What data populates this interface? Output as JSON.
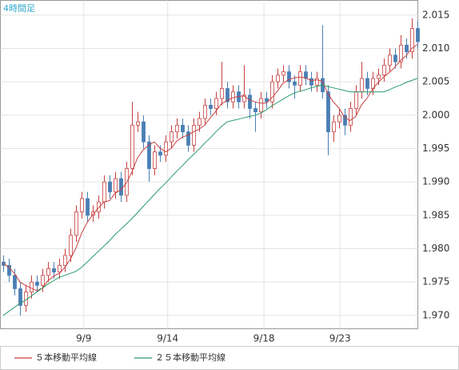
{
  "chart_data": {
    "type": "candlestick",
    "title": "4時間足",
    "x": [
      0,
      1,
      2,
      3,
      4,
      5,
      6,
      7,
      8,
      9,
      10,
      11,
      12,
      13,
      14,
      15,
      16,
      17,
      18,
      19,
      20,
      21,
      22,
      23,
      24,
      25,
      26,
      27,
      28,
      29,
      30,
      31,
      32,
      33,
      34,
      35,
      36,
      37,
      38,
      39,
      40,
      41,
      42,
      43,
      44,
      45,
      46,
      47,
      48,
      49,
      50,
      51,
      52,
      53,
      54,
      55,
      56,
      57,
      58,
      59,
      60,
      61,
      62,
      63,
      64,
      65,
      66,
      67,
      68,
      69,
      70,
      71,
      72,
      73,
      74
    ],
    "candles": {
      "up_color": "#c84040",
      "down_color": "#4a7fb5",
      "open": [
        1.978,
        1.9775,
        1.976,
        1.974,
        1.9715,
        1.9735,
        1.975,
        1.9745,
        1.976,
        1.977,
        1.9765,
        1.9775,
        1.979,
        1.982,
        1.9855,
        1.9875,
        1.985,
        1.9855,
        1.987,
        1.99,
        1.9885,
        1.9905,
        1.988,
        1.992,
        1.9985,
        1.999,
        1.996,
        1.992,
        1.9945,
        1.994,
        1.996,
        1.9975,
        1.9985,
        1.9975,
        1.9955,
        1.9985,
        1.9995,
        2.0015,
        2.001,
        2.0025,
        2.004,
        2.002,
        2.0035,
        2.002,
        2.003,
        2.001,
        2.0005,
        2.0025,
        2.002,
        2.005,
        2.006,
        2.0065,
        2.005,
        2.0045,
        2.0065,
        2.0055,
        2.0045,
        2.0055,
        2.0035,
        1.9975,
        1.999,
        2.0,
        1.9985,
        2.001,
        2.0035,
        2.0055,
        2.004,
        2.0055,
        2.006,
        2.0075,
        2.009,
        2.008,
        2.0105,
        2.0095,
        2.013
      ],
      "high": [
        1.979,
        1.9785,
        1.977,
        1.975,
        1.9745,
        1.976,
        1.976,
        1.977,
        1.978,
        1.978,
        1.9785,
        1.98,
        1.983,
        1.9865,
        1.9885,
        1.9885,
        1.9865,
        1.988,
        1.991,
        1.991,
        1.9915,
        1.9915,
        1.993,
        2.002,
        2.0005,
        2.0,
        1.997,
        1.9955,
        1.9955,
        1.997,
        1.9985,
        1.9995,
        1.9995,
        1.9985,
        1.9995,
        2.0005,
        2.0025,
        2.0025,
        2.0035,
        2.008,
        2.005,
        2.0045,
        2.0045,
        2.0075,
        2.004,
        2.002,
        2.0035,
        2.0035,
        2.006,
        2.007,
        2.0075,
        2.0075,
        2.006,
        2.0075,
        2.0075,
        2.0065,
        2.0065,
        2.0135,
        2.0045,
        2.0,
        2.001,
        2.001,
        2.002,
        2.0045,
        2.008,
        2.0065,
        2.0065,
        2.007,
        2.0085,
        2.01,
        2.01,
        2.012,
        2.0115,
        2.0145,
        2.014
      ],
      "low": [
        1.9765,
        1.975,
        1.973,
        1.97,
        1.9705,
        1.9725,
        1.9735,
        1.9735,
        1.975,
        1.9755,
        1.9755,
        1.9765,
        1.978,
        1.981,
        1.9845,
        1.984,
        1.984,
        1.9845,
        1.986,
        1.9875,
        1.9875,
        1.987,
        1.987,
        1.991,
        1.9975,
        1.995,
        1.99,
        1.991,
        1.993,
        1.993,
        1.995,
        1.9965,
        1.9965,
        1.9945,
        1.9945,
        1.9975,
        1.9985,
        2.0,
        2.0,
        2.0015,
        2.001,
        2.001,
        2.001,
        2.001,
        1.9995,
        1.9975,
        1.9995,
        2.001,
        2.001,
        2.004,
        2.005,
        2.004,
        2.0025,
        2.0035,
        2.0045,
        2.0035,
        2.0035,
        2.0025,
        1.994,
        1.996,
        1.998,
        1.997,
        1.9975,
        2.0,
        2.0025,
        2.003,
        2.003,
        2.0045,
        2.005,
        2.0065,
        2.007,
        2.007,
        2.0085,
        2.0085,
        2.01
      ],
      "close": [
        1.9775,
        1.976,
        1.974,
        1.9715,
        1.9735,
        1.975,
        1.9745,
        1.976,
        1.977,
        1.9765,
        1.9775,
        1.979,
        1.982,
        1.9855,
        1.9875,
        1.985,
        1.9855,
        1.987,
        1.99,
        1.9885,
        1.9905,
        1.988,
        1.992,
        1.9985,
        1.999,
        1.996,
        1.992,
        1.9945,
        1.994,
        1.996,
        1.9975,
        1.9985,
        1.9975,
        1.9955,
        1.9985,
        1.9995,
        2.0015,
        2.001,
        2.0025,
        2.004,
        2.002,
        2.0035,
        2.002,
        2.003,
        2.001,
        2.0005,
        2.0025,
        2.002,
        2.005,
        2.006,
        2.0065,
        2.005,
        2.0045,
        2.0065,
        2.0055,
        2.0045,
        2.0055,
        2.0035,
        1.9975,
        1.999,
        2.0,
        1.9985,
        2.001,
        2.0035,
        2.0055,
        2.004,
        2.0055,
        2.006,
        2.0075,
        2.009,
        2.008,
        2.0105,
        2.0095,
        2.013,
        2.011
      ]
    },
    "series": [
      {
        "name": "５本移動平均線",
        "color": "#c84040",
        "values": [
          1.9778,
          1.9772,
          1.9763,
          1.975,
          1.9745,
          1.9741,
          1.9737,
          1.9741,
          1.9752,
          1.9759,
          1.9763,
          1.9772,
          1.9784,
          1.9801,
          1.9823,
          1.9839,
          1.9851,
          1.9861,
          1.987,
          1.9872,
          1.9883,
          1.9888,
          1.9898,
          1.9915,
          1.9936,
          1.9948,
          1.9955,
          1.996,
          1.9951,
          1.9945,
          1.995,
          1.9961,
          1.9967,
          1.997,
          1.9975,
          1.9979,
          1.9985,
          1.9996,
          2.0006,
          2.0017,
          2.0022,
          2.0026,
          2.0028,
          2.0029,
          2.0023,
          2.002,
          2.0018,
          2.0018,
          2.0026,
          2.0036,
          2.0048,
          2.0053,
          2.0056,
          2.0057,
          2.0056,
          2.0052,
          2.0053,
          2.0051,
          2.0033,
          2.002,
          2.0011,
          1.9997,
          1.9992,
          1.9998,
          2.0015,
          2.0025,
          2.0039,
          2.0049,
          2.0057,
          2.0064,
          2.0072,
          2.0082,
          2.0089,
          2.01,
          2.0106
        ]
      },
      {
        "name": "２５本移動平均線",
        "color": "#2a9a6a",
        "values": [
          1.97,
          1.9706,
          1.9712,
          1.9718,
          1.9723,
          1.9729,
          1.9735,
          1.9741,
          1.9747,
          1.9752,
          1.9757,
          1.976,
          1.9763,
          1.9766,
          1.9772,
          1.978,
          1.9788,
          1.9796,
          1.9804,
          1.9812,
          1.9821,
          1.9829,
          1.9837,
          1.9845,
          1.9854,
          1.9863,
          1.9872,
          1.9881,
          1.989,
          1.9898,
          1.9907,
          1.9916,
          1.9924,
          1.9933,
          1.9941,
          1.9949,
          1.9958,
          1.9966,
          1.9975,
          1.9983,
          1.999,
          1.9992,
          1.9994,
          1.9996,
          1.9998,
          2.0,
          2.0003,
          2.0008,
          2.0014,
          2.0019,
          2.0024,
          2.0029,
          2.0033,
          2.0036,
          2.0038,
          2.0041,
          2.0043,
          2.0045,
          2.0043,
          2.0041,
          2.0039,
          2.0037,
          2.0035,
          2.0035,
          2.0035,
          2.0035,
          2.0035,
          2.0035,
          2.0035,
          2.0038,
          2.0042,
          2.0045,
          2.0049,
          2.0052,
          2.0055
        ]
      }
    ],
    "xlim": [
      -0.5,
      74.1
    ],
    "xticks": [
      {
        "value": 14.4,
        "label": "9/9"
      },
      {
        "value": 29.4,
        "label": "9/14"
      },
      {
        "value": 46.6,
        "label": "9/18"
      },
      {
        "value": 60.2,
        "label": "9/23"
      }
    ],
    "ylim": [
      1.968,
      2.0172
    ],
    "yticks": [
      {
        "value": 1.97,
        "label": "1.970"
      },
      {
        "value": 1.975,
        "label": "1.975"
      },
      {
        "value": 1.98,
        "label": "1.980"
      },
      {
        "value": 1.985,
        "label": "1.985"
      },
      {
        "value": 1.99,
        "label": "1.990"
      },
      {
        "value": 1.995,
        "label": "1.995"
      },
      {
        "value": 2.0,
        "label": "2.000"
      },
      {
        "value": 2.005,
        "label": "2.005"
      },
      {
        "value": 2.01,
        "label": "2.010"
      },
      {
        "value": 2.015,
        "label": "2.015"
      }
    ],
    "grid": true
  }
}
